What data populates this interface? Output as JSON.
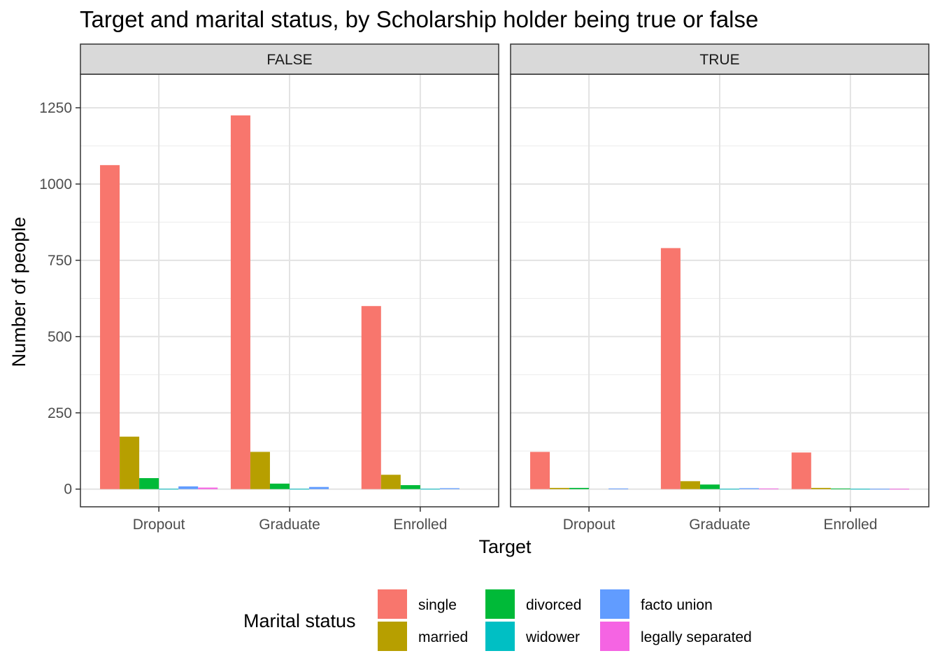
{
  "chart_data": {
    "type": "bar",
    "title": "Target and marital status, by Scholarship holder being true or false",
    "xlabel": "Target",
    "ylabel": "Number of people",
    "ylim": [
      -58,
      1360
    ],
    "yticks": [
      0,
      250,
      500,
      750,
      1000,
      1250
    ],
    "grid": true,
    "categories": [
      "Dropout",
      "Graduate",
      "Enrolled"
    ],
    "legend": {
      "title": "Marital status",
      "position": "bottom"
    },
    "series_info": [
      {
        "name": "single",
        "color": "#F8766D"
      },
      {
        "name": "married",
        "color": "#B79F00"
      },
      {
        "name": "divorced",
        "color": "#00BA38"
      },
      {
        "name": "widower",
        "color": "#00BFC4"
      },
      {
        "name": "facto union",
        "color": "#619CFF"
      },
      {
        "name": "legally separated",
        "color": "#F564E3"
      }
    ],
    "panels": [
      {
        "label": "FALSE",
        "series": [
          {
            "name": "single",
            "values": [
              1062,
              1225,
              600
            ]
          },
          {
            "name": "married",
            "values": [
              172,
              122,
              47
            ]
          },
          {
            "name": "divorced",
            "values": [
              36,
              18,
              13
            ]
          },
          {
            "name": "widower",
            "values": [
              1,
              1,
              1
            ]
          },
          {
            "name": "facto union",
            "values": [
              9,
              7,
              3
            ]
          },
          {
            "name": "legally separated",
            "values": [
              5,
              0,
              0
            ]
          }
        ]
      },
      {
        "label": "TRUE",
        "series": [
          {
            "name": "single",
            "values": [
              122,
              790,
              120
            ]
          },
          {
            "name": "married",
            "values": [
              4,
              26,
              4
            ]
          },
          {
            "name": "divorced",
            "values": [
              4,
              15,
              2
            ]
          },
          {
            "name": "widower",
            "values": [
              0,
              1,
              1
            ]
          },
          {
            "name": "facto union",
            "values": [
              2,
              3,
              1
            ]
          },
          {
            "name": "legally separated",
            "values": [
              0,
              2,
              1
            ]
          }
        ]
      }
    ]
  }
}
